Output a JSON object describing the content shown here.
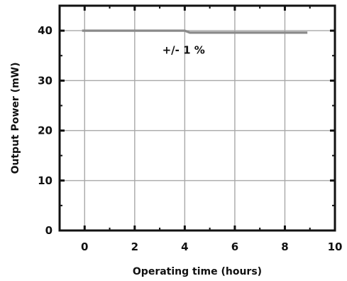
{
  "chart_data": {
    "type": "line",
    "title": "",
    "xlabel": "Operating time (hours)",
    "ylabel": "Output Power (mW)",
    "xlim": [
      -1,
      10
    ],
    "ylim": [
      0,
      45
    ],
    "x_ticks": [
      0,
      2,
      4,
      6,
      8,
      10
    ],
    "y_ticks": [
      0,
      10,
      20,
      30,
      40
    ],
    "x_tick_labels": [
      "0",
      "2",
      "4",
      "6",
      "8",
      "10"
    ],
    "y_tick_labels": [
      "0",
      "10",
      "20",
      "30",
      "40"
    ],
    "grid": true,
    "legend": "none",
    "series": [
      {
        "x": [
          -0.1,
          1,
          2,
          3,
          4,
          4.2,
          5,
          6,
          7,
          8,
          8.9
        ],
        "y": [
          40,
          40,
          40,
          40,
          40,
          39.6,
          39.6,
          39.6,
          39.6,
          39.6,
          39.6
        ],
        "color": "#8a8a8a"
      }
    ],
    "annotations": [
      {
        "text": "+/- 1 %",
        "x": 3.1,
        "y": 35.4
      }
    ]
  }
}
